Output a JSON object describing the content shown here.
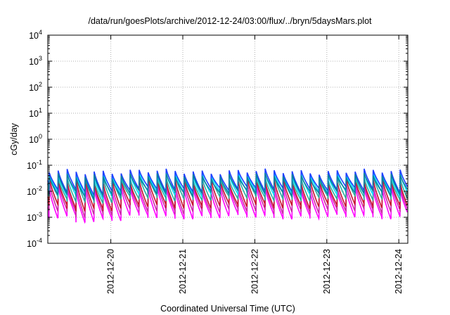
{
  "chart_data": {
    "type": "line",
    "title": "/data/run/goesPlots/archive/2012-12-24/03:00/flux/../bryn/5daysMars.plot",
    "xlabel": "Coordinated Universal Time (UTC)",
    "ylabel": "cGy/day",
    "yscale": "log",
    "ylim": [
      0.0001,
      10000
    ],
    "y_ticks": [
      {
        "exp": "-4",
        "value": 0.0001
      },
      {
        "exp": "-3",
        "value": 0.001
      },
      {
        "exp": "-2",
        "value": 0.01
      },
      {
        "exp": "-1",
        "value": 0.1
      },
      {
        "exp": "0",
        "value": 1
      },
      {
        "exp": "1",
        "value": 10
      },
      {
        "exp": "2",
        "value": 100
      },
      {
        "exp": "3",
        "value": 1000
      },
      {
        "exp": "4",
        "value": 10000
      }
    ],
    "xlim": [
      "2012-12-19 03:00",
      "2012-12-24 03:00"
    ],
    "x_ticks": [
      "2012-12-20",
      "2012-12-21",
      "2012-12-22",
      "2012-12-23",
      "2012-12-24"
    ],
    "grid": true,
    "cycle_hours": 3,
    "series": [
      {
        "color": "#ff00ff",
        "peak": 0.012,
        "trough": 0.0011
      },
      {
        "color": "#cc2aa8",
        "peak": 0.018,
        "trough": 0.0018
      },
      {
        "color": "#c8102e",
        "peak": 0.026,
        "trough": 0.0028
      },
      {
        "color": "#2ab0a0",
        "peak": 0.034,
        "trough": 0.0055
      },
      {
        "color": "#00e0ff",
        "peak": 0.045,
        "trough": 0.0085
      },
      {
        "color": "#1f3fff",
        "peak": 0.058,
        "trough": 0.012
      },
      {
        "color": "#0a7fa0",
        "peak": 0.04,
        "trough": 0.009
      }
    ]
  }
}
